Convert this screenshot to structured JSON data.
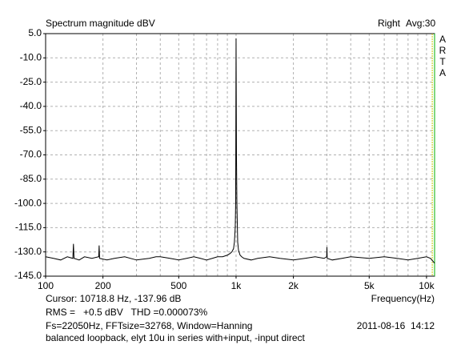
{
  "chart_data": {
    "type": "line",
    "title": "Spectrum magnitude dBV",
    "channel": "Right",
    "averaging": "Avg:30",
    "side_label": [
      "A",
      "R",
      "T",
      "A"
    ],
    "xlabel": "Frequency(Hz)",
    "log_x": true,
    "grid": true,
    "xlim": [
      100,
      11025
    ],
    "ylim": [
      -145,
      5
    ],
    "xticks": [
      {
        "value": 100,
        "label": "100"
      },
      {
        "value": 200,
        "label": "200"
      },
      {
        "value": 500,
        "label": "500"
      },
      {
        "value": 1000,
        "label": "1k"
      },
      {
        "value": 2000,
        "label": "2k"
      },
      {
        "value": 5000,
        "label": "5k"
      },
      {
        "value": 10000,
        "label": "10k"
      }
    ],
    "xgrid_minor": [
      300,
      400,
      600,
      700,
      800,
      900,
      3000,
      4000,
      6000,
      7000,
      8000,
      9000
    ],
    "yticks": [
      {
        "value": 5,
        "label": "5.0"
      },
      {
        "value": -10,
        "label": "-10.0"
      },
      {
        "value": -25,
        "label": "-25.0"
      },
      {
        "value": -40,
        "label": "-40.0"
      },
      {
        "value": -55,
        "label": "-55.0"
      },
      {
        "value": -70,
        "label": "-70.0"
      },
      {
        "value": -85,
        "label": "-85.0"
      },
      {
        "value": -100,
        "label": "-100.0"
      },
      {
        "value": -115,
        "label": "-115.0"
      },
      {
        "value": -130,
        "label": "-130.0"
      },
      {
        "value": -145,
        "label": "-145.0"
      }
    ],
    "cursor": {
      "x": 10718.8,
      "color": "#c8c800"
    },
    "x": [
      100,
      110,
      120,
      130,
      139,
      140,
      141,
      150,
      160,
      175,
      190,
      191,
      192,
      210,
      230,
      260,
      300,
      350,
      380,
      400,
      450,
      500,
      550,
      600,
      650,
      700,
      750,
      800,
      850,
      900,
      930,
      950,
      970,
      980,
      990,
      995,
      1000,
      1005,
      1010,
      1020,
      1030,
      1050,
      1070,
      1100,
      1200,
      1300,
      1500,
      1700,
      2000,
      2300,
      2600,
      2900,
      2990,
      3000,
      3010,
      3200,
      3600,
      4000,
      5000,
      6000,
      7000,
      8000,
      9000,
      10000,
      10500,
      11025
    ],
    "series": [
      {
        "color": "#000000",
        "values": [
          -133,
          -134,
          -135,
          -133,
          -134,
          -125,
          -134,
          -135,
          -133,
          -134,
          -133,
          -126,
          -134,
          -135,
          -134,
          -133,
          -135,
          -134,
          -133,
          -133,
          -134,
          -135,
          -134,
          -133,
          -134,
          -135,
          -134,
          -133,
          -133,
          -132,
          -131,
          -130,
          -128,
          -124,
          -115,
          -100,
          2,
          -70,
          -100,
          -124,
          -129,
          -132,
          -133,
          -134,
          -135,
          -134,
          -133,
          -134,
          -135,
          -134,
          -133,
          -134,
          -133,
          -127,
          -134,
          -135,
          -134,
          -133,
          -134,
          -133,
          -134,
          -135,
          -134,
          -133,
          -134,
          -137
        ]
      }
    ],
    "footer": {
      "cursor_text": "Cursor: 10718.8 Hz, -137.96 dB",
      "rms_text": "RMS =   +0.5 dBV   THD =0.000073%",
      "rms_color": "#cc0000",
      "settings": "Fs=22050Hz, FFTsize=32768, Window=Hanning",
      "timestamp": "2011-08-16  14:12",
      "comment": "balanced loopback, elyt 10u in series with+input, -input direct"
    }
  }
}
